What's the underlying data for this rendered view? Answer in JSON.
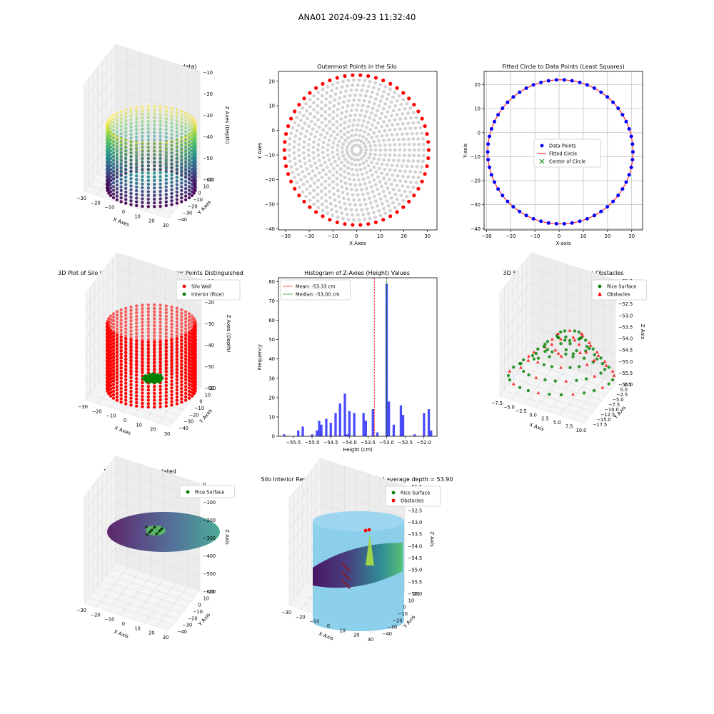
{
  "figure": {
    "suptitle": "ANA01 2024-09-23 11:32:40"
  },
  "colors": {
    "viridis": [
      "#440154",
      "#3b528b",
      "#21918c",
      "#5ec962",
      "#fde725"
    ],
    "gray": "#d3d3d3",
    "red": "#ff0000",
    "green": "#008000",
    "blue": "#0000ff",
    "hist": "#0000ff",
    "cylinder": "#87ceeb"
  },
  "chart_data": [
    {
      "id": "p1",
      "type": "scatter3d",
      "title": "3D Plot of Silo Interior(row data)",
      "xlabel": "X Axes",
      "ylabel": "Y Axes",
      "zlabel": "Z Axes (Depth)",
      "xticks": [
        "−30",
        "−20",
        "−10",
        "0",
        "10",
        "20",
        "30"
      ],
      "yticks": [
        "20",
        "10",
        "0",
        "−10",
        "−20",
        "−30",
        "−40"
      ],
      "zticks": [
        "−10",
        "−20",
        "−30",
        "−40",
        "−50",
        "−60"
      ],
      "colormap": "viridis"
    },
    {
      "id": "p2",
      "type": "scatter",
      "title": "Outermost Points in the Silo",
      "xlabel": "X Axes",
      "ylabel": "Y Axes",
      "xlim": [
        -33,
        34
      ],
      "ylim": [
        -40.5,
        24
      ],
      "xticks": [
        -30,
        -20,
        -10,
        0,
        10,
        20,
        30
      ],
      "yticks": [
        -40,
        -30,
        -20,
        -10,
        0,
        10,
        20
      ],
      "center": [
        0,
        -8
      ],
      "radius": 30.5,
      "rings": 14,
      "series": [
        {
          "name": "",
          "color": "#d3d3d3",
          "kind": "interior_rings"
        },
        {
          "name": "",
          "color": "#ff0000",
          "kind": "outermost"
        }
      ]
    },
    {
      "id": "p3",
      "type": "scatter",
      "title": "Fitted Circle to Data Points (Least Squares)",
      "xlabel": "X-axis",
      "ylabel": "Y-axis",
      "xlim": [
        -31,
        34.5
      ],
      "ylim": [
        -40.5,
        25.5
      ],
      "xticks": [
        -30,
        -20,
        -10,
        0,
        10,
        20,
        30
      ],
      "yticks": [
        -40,
        -30,
        -20,
        -10,
        0,
        10,
        20
      ],
      "grid": true,
      "legend": "center",
      "circle": {
        "center": [
          0.5,
          -8
        ],
        "radius": 30
      },
      "series": [
        {
          "name": "Data Points",
          "color": "#0000ff",
          "marker": "circle"
        },
        {
          "name": "Fitted Circle",
          "color": "#ff0000",
          "marker": "line"
        },
        {
          "name": "Center of Circle",
          "color": "#008000",
          "marker": "x"
        }
      ]
    },
    {
      "id": "p4",
      "type": "scatter3d",
      "title": "3D Plot of Silo Interior with Wall and Interior Points Distinguished",
      "xlabel": "X Axes",
      "ylabel": "Y Axes",
      "zlabel": "Z Axes (Depth)",
      "xticks": [
        "−30",
        "−20",
        "−10",
        "0",
        "10",
        "20",
        "30"
      ],
      "yticks": [
        "20",
        "10",
        "0",
        "−10",
        "−20",
        "−30",
        "−40"
      ],
      "zticks": [
        "−10",
        "−20",
        "−30",
        "−40",
        "−50",
        "−60"
      ],
      "legend": "top-right",
      "series": [
        {
          "name": "Silo Wall",
          "color": "#ff0000"
        },
        {
          "name": "Interior (Rice)",
          "color": "#008000"
        }
      ]
    },
    {
      "id": "p5",
      "type": "bar",
      "title": "Histogram of Z-Axies (Height) Values",
      "xlabel": "Height (cm)",
      "ylabel": "Frequency",
      "xlim": [
        -55.9,
        -51.65
      ],
      "ylim": [
        0,
        82
      ],
      "xticks": [
        -55.5,
        -55.0,
        -54.5,
        -54.0,
        -53.5,
        -53.0,
        -52.5,
        -52.0
      ],
      "xtick_labels": [
        "−55.5",
        "−55.0",
        "−54.5",
        "−54.0",
        "−53.5",
        "−53.0",
        "−52.5",
        "−52.0"
      ],
      "yticks": [
        0,
        10,
        20,
        30,
        40,
        50,
        60,
        70,
        80
      ],
      "bin_width": 0.0625,
      "bins_left": [
        -55.78,
        -55.4,
        -55.28,
        -55.03,
        -54.9,
        -54.84,
        -54.78,
        -54.65,
        -54.53,
        -54.4,
        -54.28,
        -54.15,
        -54.09,
        -54.03,
        -53.9,
        -53.65,
        -53.59,
        -53.4,
        -53.28,
        -53.03,
        -52.97,
        -52.84,
        -52.65,
        -52.59,
        -52.28,
        -52.03,
        -51.9,
        -51.84
      ],
      "bins_values": [
        1,
        3,
        5,
        1,
        3,
        8,
        6,
        9,
        7,
        12,
        17,
        22,
        1,
        13,
        12,
        12,
        8,
        14,
        2,
        79,
        18,
        6,
        16,
        11,
        1,
        12,
        14,
        3
      ],
      "mean_label": "Mean: -53.33 cm",
      "mean": -53.33,
      "median_label": "Median: -53.00 cm",
      "median": -53.0,
      "legend": "top-left"
    },
    {
      "id": "p6",
      "type": "scatter3d",
      "title": "3D Scatter Plot: Rice Surface vs Obstacles",
      "xlabel": "X Axis",
      "ylabel": "Y Axis",
      "zlabel": "Z Axis",
      "xticks": [
        "−7.5",
        "−5.0",
        "−2.5",
        "0.0",
        "2.5",
        "5.0",
        "7.5",
        "10.0"
      ],
      "yticks": [
        "2.5",
        "0.0",
        "−2.5",
        "−5.0",
        "−7.5",
        "−10.0",
        "−12.5",
        "−15.0",
        "−17.5"
      ],
      "zticks": [
        "−51.5",
        "−52.0",
        "−52.5",
        "−53.0",
        "−53.5",
        "−54.0",
        "−54.5",
        "−55.0",
        "−55.5",
        "−56.0"
      ],
      "legend": "top-right",
      "series": [
        {
          "name": "Rice Surface",
          "color": "#008000",
          "marker": "circle"
        },
        {
          "name": "Obstacles",
          "color": "#ff0000",
          "marker": "triangle"
        }
      ]
    },
    {
      "id": "p7",
      "type": "surface3d",
      "title": "Rice Surface Interpolated",
      "subtitle": "depth = 53.90",
      "xlabel": "X Axis",
      "ylabel": "Y Axis",
      "zlabel": "Z Axis",
      "xticks": [
        "−30",
        "−20",
        "−10",
        "0",
        "10",
        "20",
        "30"
      ],
      "yticks": [
        "20",
        "10",
        "0",
        "−10",
        "−20",
        "−30",
        "−40"
      ],
      "zticks": [
        "0",
        "−100",
        "−200",
        "−300",
        "−400",
        "−500",
        "−600"
      ],
      "legend": "top-right",
      "series": [
        {
          "name": "Rice Surface",
          "color": "#008000"
        }
      ]
    },
    {
      "id": "p8",
      "type": "surface3d",
      "title": "Silo Interior Representation using weighted average depth = 53.90",
      "xlabel": "X Axis",
      "ylabel": "Y Axis",
      "zlabel": "Z Axis",
      "xticks": [
        "−30",
        "−20",
        "−10",
        "0",
        "10",
        "20",
        "30"
      ],
      "yticks": [
        "20",
        "10",
        "0",
        "−10",
        "−20",
        "−30",
        "−40"
      ],
      "zticks": [
        "−51.5",
        "−52.0",
        "−52.5",
        "−53.0",
        "−53.5",
        "−54.0",
        "−54.5",
        "−55.0",
        "−55.5",
        "−56.0"
      ],
      "legend": "top-center",
      "series": [
        {
          "name": "Rice Surface",
          "color": "#008000"
        },
        {
          "name": "Obstacles",
          "color": "#ff0000"
        }
      ]
    }
  ]
}
